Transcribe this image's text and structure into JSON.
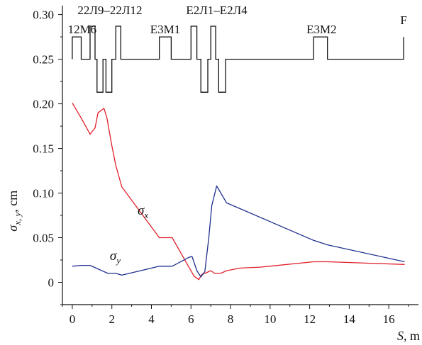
{
  "chart_data": {
    "type": "line",
    "xlabel": {
      "symbol": "S",
      "unit": ", m"
    },
    "ylabel": {
      "symbol": "σ",
      "subscript": "x, y",
      "unit": ", cm"
    },
    "xlim": [
      -0.5,
      17.5
    ],
    "ylim": [
      -0.025,
      0.31
    ],
    "x_ticks": [
      0,
      2,
      4,
      6,
      8,
      10,
      12,
      14,
      16
    ],
    "y_ticks": [
      0,
      0.05,
      0.1,
      0.15,
      0.2,
      0.25,
      0.3
    ],
    "y_tick_labels": [
      "0",
      "0.05",
      "0.10",
      "0.15",
      "0.20",
      "0.25",
      "0.30"
    ],
    "series": [
      {
        "name": "σx",
        "symbol": "σ",
        "subscript": "x",
        "color": "#e0202a",
        "x": [
          0,
          0.45,
          0.9,
          1.15,
          1.3,
          1.6,
          1.75,
          2.0,
          2.2,
          2.5,
          4.4,
          5.05,
          6.15,
          6.4,
          6.55,
          6.7,
          7.0,
          7.2,
          7.5,
          7.8,
          8.5,
          9.5,
          12.2,
          12.9,
          16.8
        ],
        "y": [
          0.201,
          0.184,
          0.166,
          0.173,
          0.19,
          0.195,
          0.184,
          0.153,
          0.131,
          0.107,
          0.05,
          0.05,
          0.007,
          0.003,
          0.009,
          0.01,
          0.013,
          0.01,
          0.01,
          0.013,
          0.016,
          0.017,
          0.023,
          0.023,
          0.02
        ]
      },
      {
        "name": "σy",
        "symbol": "σ",
        "subscript": "y",
        "color": "#1f2f8f",
        "x": [
          0,
          0.45,
          0.9,
          1.2,
          1.8,
          2.2,
          2.5,
          4.4,
          5.05,
          5.9,
          6.05,
          6.3,
          6.5,
          6.7,
          6.9,
          7.05,
          7.3,
          7.8,
          12.2,
          12.9,
          16.8
        ],
        "y": [
          0.018,
          0.019,
          0.019,
          0.016,
          0.01,
          0.01,
          0.008,
          0.018,
          0.018,
          0.028,
          0.029,
          0.013,
          0.006,
          0.012,
          0.05,
          0.086,
          0.108,
          0.089,
          0.047,
          0.042,
          0.023
        ]
      }
    ],
    "lattice": {
      "color": "#111111",
      "labels": [
        {
          "text": "12M6",
          "x": 0.5
        },
        {
          "text": "22Л9–22Л12",
          "x": 1.9
        },
        {
          "text": "E3M1",
          "x": 4.7
        },
        {
          "text": "E2Л1–E2Л4",
          "x": 7.3
        },
        {
          "text": "E3M2",
          "x": 12.6
        },
        {
          "text": "F",
          "x": 16.75
        }
      ],
      "points": [
        [
          0,
          0.25
        ],
        [
          0,
          0.275
        ],
        [
          0.45,
          0.275
        ],
        [
          0.45,
          0.25
        ],
        [
          0.9,
          0.25
        ],
        [
          0.9,
          0.287
        ],
        [
          1.15,
          0.287
        ],
        [
          1.15,
          0.25
        ],
        [
          1.25,
          0.25
        ],
        [
          1.25,
          0.213
        ],
        [
          1.55,
          0.213
        ],
        [
          1.55,
          0.25
        ],
        [
          1.7,
          0.25
        ],
        [
          1.7,
          0.213
        ],
        [
          2.0,
          0.213
        ],
        [
          2.0,
          0.25
        ],
        [
          2.2,
          0.25
        ],
        [
          2.2,
          0.287
        ],
        [
          2.45,
          0.287
        ],
        [
          2.45,
          0.25
        ],
        [
          4.4,
          0.25
        ],
        [
          4.4,
          0.275
        ],
        [
          5.0,
          0.275
        ],
        [
          5.0,
          0.25
        ],
        [
          6.0,
          0.25
        ],
        [
          6.0,
          0.287
        ],
        [
          6.3,
          0.287
        ],
        [
          6.3,
          0.25
        ],
        [
          6.5,
          0.25
        ],
        [
          6.5,
          0.213
        ],
        [
          6.85,
          0.213
        ],
        [
          6.85,
          0.25
        ],
        [
          7.0,
          0.25
        ],
        [
          7.0,
          0.287
        ],
        [
          7.25,
          0.287
        ],
        [
          7.25,
          0.25
        ],
        [
          7.4,
          0.25
        ],
        [
          7.4,
          0.213
        ],
        [
          7.75,
          0.213
        ],
        [
          7.75,
          0.25
        ],
        [
          12.2,
          0.25
        ],
        [
          12.2,
          0.275
        ],
        [
          12.9,
          0.275
        ],
        [
          12.9,
          0.25
        ],
        [
          16.75,
          0.25
        ],
        [
          16.75,
          0.275
        ]
      ]
    }
  }
}
